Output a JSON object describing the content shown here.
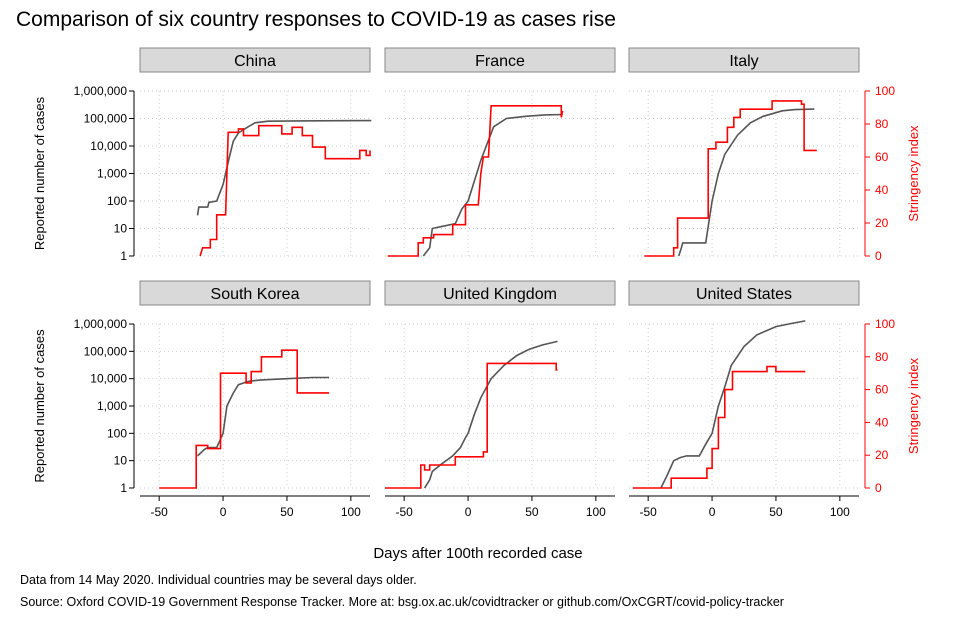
{
  "title": "Comparison of six country responses to COVID-19 as cases rise",
  "notes": {
    "data_note": "Data from 14 May 2020. Individual countries may be several days older.",
    "source": "Source: Oxford COVID-19 Government Response Tracker. More at: bsg.ox.ac.uk/covidtracker or github.com/OxCGRT/covid-policy-tracker"
  },
  "colors": {
    "cases": "#555555",
    "stringency": "#ff0000",
    "panel_header": "#d9d9d9",
    "grid": "#bbbbbb"
  },
  "chart_data": {
    "type": "line",
    "xlabel": "Days after 100th recorded case",
    "ylabel_left": "Reported number of cases",
    "ylabel_right": "Stringency index",
    "x_ticks": [
      -50,
      0,
      50,
      100
    ],
    "xlim": [
      -65,
      115
    ],
    "y_left_scale": "log",
    "y_left_ticks": [
      "1",
      "10",
      "100",
      "1,000",
      "10,000",
      "100,000",
      "1,000,000"
    ],
    "y_left_tick_values": [
      1,
      10,
      100,
      1000,
      10000,
      100000,
      1000000
    ],
    "y_right_ticks": [
      0,
      20,
      40,
      60,
      80,
      100
    ],
    "y_right_lim": [
      0,
      100
    ],
    "grid": true,
    "panels": [
      {
        "name": "China",
        "cases": [
          [
            -20,
            30
          ],
          [
            -19,
            60
          ],
          [
            -18,
            60
          ],
          [
            -12,
            60
          ],
          [
            -11,
            90
          ],
          [
            -5,
            100
          ],
          [
            0,
            400
          ],
          [
            5,
            4000
          ],
          [
            8,
            15000
          ],
          [
            12,
            30000
          ],
          [
            18,
            45000
          ],
          [
            25,
            70000
          ],
          [
            35,
            80000
          ],
          [
            60,
            82000
          ],
          [
            90,
            83000
          ],
          [
            116,
            84000
          ]
        ],
        "stringency": [
          [
            -18,
            0
          ],
          [
            -16,
            5
          ],
          [
            -10,
            5
          ],
          [
            -10,
            10
          ],
          [
            -5,
            10
          ],
          [
            -5,
            25
          ],
          [
            2,
            25
          ],
          [
            4,
            75
          ],
          [
            12,
            75
          ],
          [
            12,
            77
          ],
          [
            16,
            77
          ],
          [
            16,
            73
          ],
          [
            28,
            73
          ],
          [
            28,
            79
          ],
          [
            46,
            79
          ],
          [
            46,
            74
          ],
          [
            54,
            74
          ],
          [
            54,
            78
          ],
          [
            62,
            78
          ],
          [
            62,
            73
          ],
          [
            70,
            73
          ],
          [
            70,
            66
          ],
          [
            80,
            66
          ],
          [
            80,
            59
          ],
          [
            107,
            59
          ],
          [
            107,
            64
          ],
          [
            112,
            64
          ],
          [
            112,
            61
          ],
          [
            115,
            61
          ],
          [
            115,
            64
          ]
        ]
      },
      {
        "name": "France",
        "cases": [
          [
            -35,
            1
          ],
          [
            -30,
            2
          ],
          [
            -28,
            10
          ],
          [
            -20,
            12
          ],
          [
            -10,
            15
          ],
          [
            -5,
            50
          ],
          [
            0,
            100
          ],
          [
            10,
            3000
          ],
          [
            20,
            50000
          ],
          [
            30,
            100000
          ],
          [
            45,
            120000
          ],
          [
            60,
            135000
          ],
          [
            74,
            140000
          ]
        ],
        "stringency": [
          [
            -63,
            0
          ],
          [
            -39,
            0
          ],
          [
            -39,
            8
          ],
          [
            -35,
            8
          ],
          [
            -35,
            11
          ],
          [
            -27,
            11
          ],
          [
            -27,
            13
          ],
          [
            -12,
            13
          ],
          [
            -12,
            19
          ],
          [
            -2,
            19
          ],
          [
            -2,
            31
          ],
          [
            8,
            31
          ],
          [
            10,
            50
          ],
          [
            12,
            60
          ],
          [
            16,
            60
          ],
          [
            18,
            91
          ],
          [
            73,
            91
          ],
          [
            73,
            84
          ],
          [
            74,
            88
          ]
        ]
      },
      {
        "name": "Italy",
        "cases": [
          [
            -26,
            1
          ],
          [
            -24,
            2
          ],
          [
            -23,
            3
          ],
          [
            -22,
            3
          ],
          [
            -22,
            3
          ],
          [
            -5,
            3
          ],
          [
            0,
            100
          ],
          [
            5,
            1000
          ],
          [
            10,
            5000
          ],
          [
            20,
            25000
          ],
          [
            30,
            70000
          ],
          [
            40,
            120000
          ],
          [
            55,
            190000
          ],
          [
            65,
            210000
          ],
          [
            80,
            220000
          ]
        ],
        "stringency": [
          [
            -53,
            0
          ],
          [
            -30,
            0
          ],
          [
            -30,
            5
          ],
          [
            -27,
            5
          ],
          [
            -27,
            23
          ],
          [
            -5,
            23
          ],
          [
            -3,
            23
          ],
          [
            -3,
            65
          ],
          [
            3,
            65
          ],
          [
            3,
            69
          ],
          [
            12,
            69
          ],
          [
            12,
            78
          ],
          [
            17,
            78
          ],
          [
            17,
            84
          ],
          [
            22,
            84
          ],
          [
            22,
            89
          ],
          [
            47,
            89
          ],
          [
            47,
            94
          ],
          [
            70,
            94
          ],
          [
            70,
            92
          ],
          [
            72,
            92
          ],
          [
            72,
            64
          ],
          [
            82,
            64
          ]
        ]
      },
      {
        "name": "South Korea",
        "cases": [
          [
            -20,
            15
          ],
          [
            -17,
            20
          ],
          [
            -15,
            25
          ],
          [
            -12,
            30
          ],
          [
            -5,
            30
          ],
          [
            0,
            100
          ],
          [
            3,
            1000
          ],
          [
            8,
            3000
          ],
          [
            12,
            6000
          ],
          [
            20,
            8000
          ],
          [
            30,
            9000
          ],
          [
            50,
            10000
          ],
          [
            70,
            11000
          ],
          [
            83,
            11000
          ]
        ],
        "stringency": [
          [
            -50,
            0
          ],
          [
            -21,
            0
          ],
          [
            -21,
            26
          ],
          [
            -12,
            26
          ],
          [
            -12,
            24
          ],
          [
            -2,
            24
          ],
          [
            -2,
            70
          ],
          [
            18,
            70
          ],
          [
            18,
            64
          ],
          [
            22,
            64
          ],
          [
            22,
            71
          ],
          [
            30,
            71
          ],
          [
            30,
            80
          ],
          [
            46,
            80
          ],
          [
            46,
            84
          ],
          [
            58,
            84
          ],
          [
            58,
            58
          ],
          [
            83,
            58
          ]
        ]
      },
      {
        "name": "United Kingdom",
        "cases": [
          [
            -34,
            1
          ],
          [
            -30,
            2
          ],
          [
            -28,
            4
          ],
          [
            -20,
            8
          ],
          [
            -12,
            15
          ],
          [
            -6,
            30
          ],
          [
            -2,
            70
          ],
          [
            0,
            100
          ],
          [
            5,
            500
          ],
          [
            10,
            2000
          ],
          [
            18,
            10000
          ],
          [
            28,
            30000
          ],
          [
            38,
            70000
          ],
          [
            48,
            120000
          ],
          [
            58,
            170000
          ],
          [
            70,
            230000
          ]
        ],
        "stringency": [
          [
            -65,
            0
          ],
          [
            -37,
            0
          ],
          [
            -37,
            14
          ],
          [
            -34,
            14
          ],
          [
            -34,
            11
          ],
          [
            -30,
            11
          ],
          [
            -30,
            14
          ],
          [
            -10,
            14
          ],
          [
            -10,
            19
          ],
          [
            12,
            19
          ],
          [
            12,
            22
          ],
          [
            15,
            22
          ],
          [
            15,
            76
          ],
          [
            69,
            76
          ],
          [
            69,
            72
          ],
          [
            70,
            72
          ]
        ]
      },
      {
        "name": "United States",
        "cases": [
          [
            -40,
            1
          ],
          [
            -35,
            3
          ],
          [
            -30,
            10
          ],
          [
            -25,
            13
          ],
          [
            -20,
            15
          ],
          [
            -10,
            15
          ],
          [
            -5,
            40
          ],
          [
            0,
            100
          ],
          [
            5,
            1000
          ],
          [
            10,
            5000
          ],
          [
            15,
            30000
          ],
          [
            25,
            150000
          ],
          [
            35,
            400000
          ],
          [
            50,
            800000
          ],
          [
            60,
            1000000
          ],
          [
            73,
            1300000
          ]
        ],
        "stringency": [
          [
            -62,
            0
          ],
          [
            -32,
            0
          ],
          [
            -32,
            6
          ],
          [
            -4,
            6
          ],
          [
            -4,
            12
          ],
          [
            0,
            12
          ],
          [
            0,
            24
          ],
          [
            5,
            24
          ],
          [
            5,
            43
          ],
          [
            10,
            43
          ],
          [
            10,
            60
          ],
          [
            16,
            60
          ],
          [
            16,
            71
          ],
          [
            43,
            71
          ],
          [
            43,
            74
          ],
          [
            50,
            74
          ],
          [
            50,
            71
          ],
          [
            73,
            71
          ]
        ]
      }
    ]
  }
}
